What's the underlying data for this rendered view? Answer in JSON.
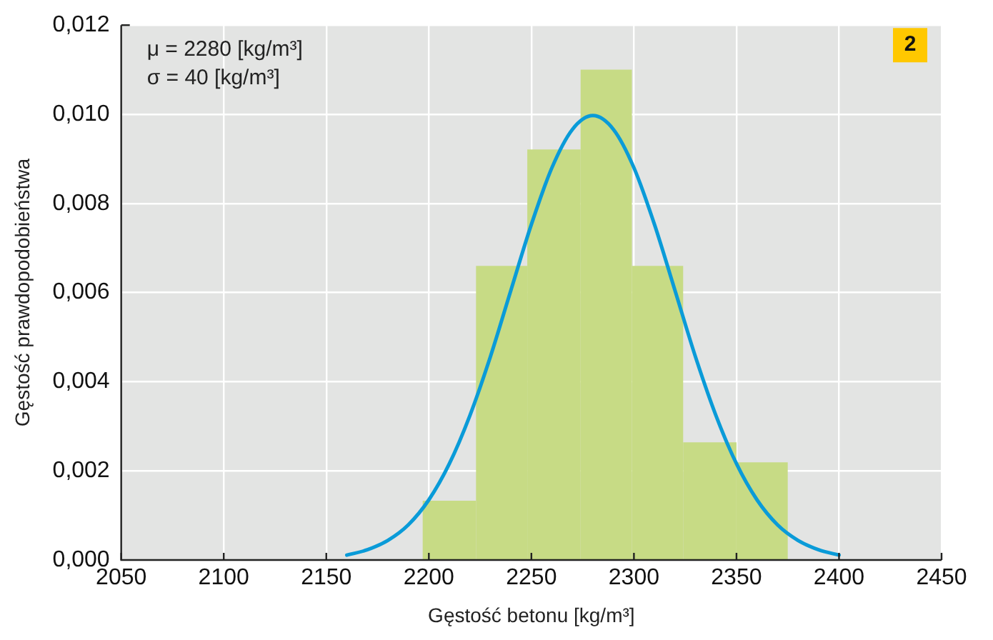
{
  "chart_data": {
    "type": "histogram",
    "xlabel": "Gęstość betonu [kg/m³]",
    "ylabel": "Gęstość prawdopodobieństwa",
    "bins": [
      2197,
      2223,
      2248,
      2274,
      2299,
      2324,
      2350,
      2375
    ],
    "values": [
      0.00133,
      0.0066,
      0.00921,
      0.011,
      0.0066,
      0.00264,
      0.00219
    ],
    "color": "#c7db85",
    "series": [
      {
        "type": "line",
        "color": "#0a9bd8",
        "x": [
          2160,
          2170,
          2180,
          2190,
          2200,
          2210,
          2220,
          2230,
          2240,
          2250,
          2260,
          2270,
          2280,
          2290,
          2300,
          2310,
          2320,
          2330,
          2340,
          2350,
          2360,
          2370,
          2380,
          2390,
          2400
        ],
        "values": [
          0.00011,
          0.00023,
          0.00044,
          0.00079,
          0.00135,
          0.00216,
          0.00324,
          0.00456,
          0.00605,
          0.00753,
          0.0088,
          0.00966,
          0.00997,
          0.00966,
          0.0088,
          0.00753,
          0.00605,
          0.00456,
          0.00324,
          0.00216,
          0.00135,
          0.00079,
          0.00044,
          0.00023,
          0.00011
        ]
      }
    ],
    "xlim": [
      2050,
      2450
    ],
    "xticks": [
      2050,
      2100,
      2150,
      2200,
      2250,
      2300,
      2350,
      2400,
      2450
    ],
    "ylim": [
      0,
      0.012
    ],
    "yticks": [
      {
        "value": 0,
        "label": "0,000"
      },
      {
        "value": 0.002,
        "label": "0,002"
      },
      {
        "value": 0.004,
        "label": "0,004"
      },
      {
        "value": 0.006,
        "label": "0,006"
      },
      {
        "value": 0.008,
        "label": "0,008"
      },
      {
        "value": 0.01,
        "label": "0,010"
      },
      {
        "value": 0.012,
        "label": "0,012"
      }
    ],
    "grid": true,
    "marker": "none",
    "line_style": "solid",
    "annotations": [
      "μ = 2280 [kg/m³]\nσ = 40 [kg/m³]",
      "2"
    ]
  }
}
